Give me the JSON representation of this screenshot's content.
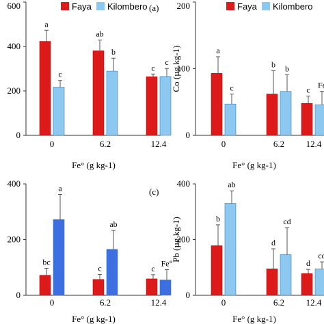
{
  "legend": {
    "items": [
      "Faya",
      "Kilombero"
    ]
  },
  "colors": {
    "faya": "#dd1a1a",
    "kilombero": "#8cc8f0",
    "kilombero_dark": "#3d6fe0",
    "error": "#555555",
    "axis": "#333333"
  },
  "chart_data": [
    {
      "panel": "(a)",
      "type": "bar",
      "categories": [
        "0",
        "6.2",
        "12.4"
      ],
      "xlabel": "Fe° (g kg-1)",
      "ylabel": "",
      "ylim": [
        0,
        600
      ],
      "yticks": [
        "0",
        "200",
        "400",
        "600"
      ],
      "series": [
        {
          "name": "Faya",
          "values": [
            423,
            381,
            264
          ],
          "errors": [
            50,
            48,
            12
          ],
          "letters": [
            "a",
            "ab",
            "c"
          ]
        },
        {
          "name": "Kilombero",
          "values": [
            217,
            289,
            265
          ],
          "errors": [
            30,
            58,
            36
          ],
          "letters": [
            "c",
            "b",
            "c"
          ]
        }
      ]
    },
    {
      "panel": "",
      "type": "bar",
      "categories": [
        "0",
        "6.2",
        "12.4"
      ],
      "xlabel": "Fe° (g kg-1)",
      "ylabel": "Co (µg kg-1)",
      "ylim": [
        0,
        200
      ],
      "yticks": [
        "0",
        "100",
        "200"
      ],
      "series": [
        {
          "name": "Faya",
          "values": [
            93,
            62,
            48
          ],
          "errors": [
            25,
            35,
            11
          ],
          "letters": [
            "a",
            "b",
            "c"
          ]
        },
        {
          "name": "Kilombero",
          "values": [
            47,
            66,
            46
          ],
          "errors": [
            15,
            25,
            20
          ],
          "letters": [
            "c",
            "b",
            "Fe"
          ]
        }
      ]
    },
    {
      "panel": "(c)",
      "type": "bar",
      "categories": [
        "0",
        "6.2",
        "12.4"
      ],
      "xlabel": "Fe° (g kg-1)",
      "ylabel": "",
      "ylim": [
        0,
        400
      ],
      "yticks": [
        "0",
        "200",
        "400"
      ],
      "series": [
        {
          "name": "Faya",
          "values": [
            72,
            57,
            59
          ],
          "errors": [
            25,
            18,
            15
          ],
          "letters": [
            "bc",
            "c",
            "c"
          ]
        },
        {
          "name": "Kilombero",
          "values": [
            272,
            165,
            55
          ],
          "errors": [
            90,
            68,
            37
          ],
          "letters": [
            "a",
            "ab",
            "Fe°"
          ]
        }
      ]
    },
    {
      "panel": "",
      "type": "bar",
      "categories": [
        "0",
        "6.2",
        "12.4"
      ],
      "xlabel": "Fe° (g kg-1)",
      "ylabel": "Pb (µg kg-1)",
      "ylim": [
        0,
        400
      ],
      "yticks": [
        "0",
        "200",
        "400"
      ],
      "series": [
        {
          "name": "Faya",
          "values": [
            178,
            95,
            78
          ],
          "errors": [
            75,
            72,
            15
          ],
          "letters": [
            "b",
            "d",
            "d"
          ]
        },
        {
          "name": "Kilombero",
          "values": [
            330,
            146,
            95
          ],
          "errors": [
            45,
            97,
            25
          ],
          "letters": [
            "ab",
            "cd",
            "cd"
          ]
        }
      ]
    }
  ]
}
